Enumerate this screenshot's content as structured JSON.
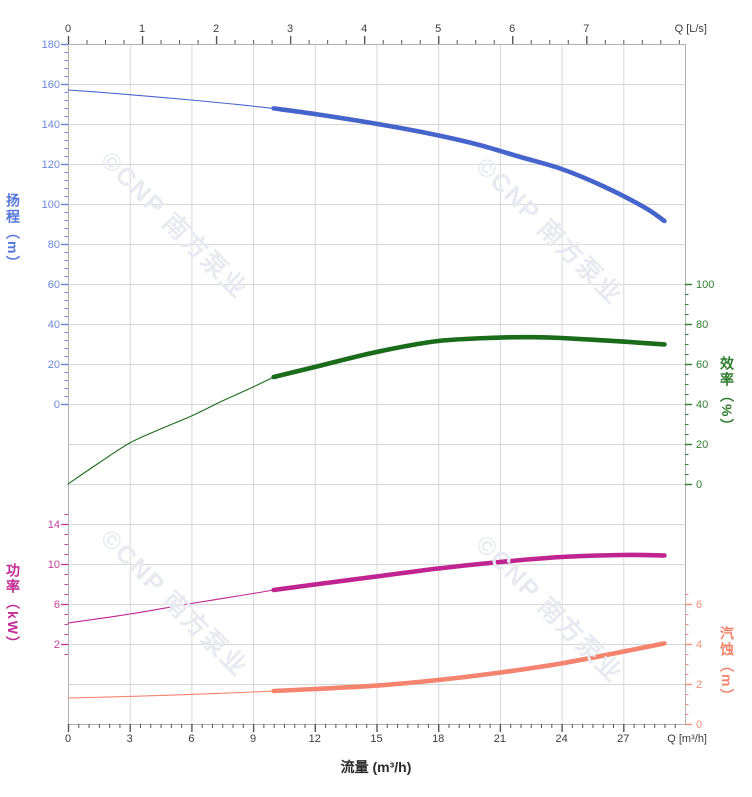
{
  "watermark": {
    "text": "©CNP 南方泵业"
  },
  "chart_data": {
    "type": "line",
    "grid": "on",
    "bottom_axis": {
      "title": "流量 (m³/h)",
      "unit_label": "Q [m³/h]",
      "min": 0,
      "max": 30,
      "major_ticks": [
        0,
        3,
        6,
        9,
        12,
        15,
        18,
        21,
        24,
        27
      ],
      "minor_step": 0.5,
      "tick_color": "#555555",
      "label_color": "#3c3c3c"
    },
    "top_axis": {
      "unit_label": "Q [L/s]",
      "min": 0,
      "max": 8.3333,
      "major_ticks": [
        0,
        1,
        2,
        3,
        4,
        5,
        6,
        7
      ],
      "minor_step": 0.25,
      "tick_color": "#555555",
      "label_color": "#3c3c3c"
    },
    "axes": {
      "head": {
        "title": "扬程（m）",
        "side": "left",
        "unit": "m",
        "major_ticks": [
          180,
          160,
          140,
          120,
          100,
          80,
          60,
          40,
          20,
          0
        ],
        "minor_step": 4,
        "curve_color": "#4565cc",
        "text_color": "#6b87dd"
      },
      "efficiency": {
        "title": "效率（%）",
        "side": "right",
        "unit": "%",
        "major_ticks": [
          100,
          80,
          60,
          40,
          20,
          0
        ],
        "minor_step": 5,
        "curve_color": "#1a6b1a",
        "text_color": "#2f7d2f"
      },
      "power": {
        "title": "功率（kW）",
        "side": "left",
        "unit": "kW",
        "major_ticks": [
          14,
          10,
          6,
          2
        ],
        "minor_step": 1,
        "curve_color": "#c02490",
        "text_color": "#c53f9b"
      },
      "npsh": {
        "title": "汽蚀（m）",
        "side": "right",
        "unit": "m",
        "major_ticks": [
          6,
          4,
          2,
          0
        ],
        "minor_step": 0.5,
        "curve_color": "#f5846f",
        "text_color": "#f58e7d"
      }
    },
    "series": [
      {
        "name": "head",
        "axis": "head",
        "rated_from_q": 10,
        "q": [
          0,
          2,
          4,
          6,
          8,
          10,
          12,
          14,
          16,
          18,
          20,
          22,
          24,
          26,
          28,
          29
        ],
        "v": [
          157,
          155.5,
          153.8,
          152,
          150,
          147.8,
          145,
          141.8,
          138.3,
          134.3,
          129.5,
          123.5,
          117.5,
          109,
          98.5,
          91.5
        ]
      },
      {
        "name": "efficiency",
        "axis": "efficiency",
        "rated_from_q": 10,
        "q": [
          0,
          1.5,
          3,
          4.5,
          6,
          7.5,
          9,
          10,
          12,
          15,
          18,
          21,
          22.5,
          24,
          27,
          29
        ],
        "v": [
          0,
          10.5,
          20.5,
          27.5,
          34,
          41.5,
          48.5,
          53.5,
          58.5,
          66,
          71.5,
          73.2,
          73.4,
          73,
          71.2,
          69.8
        ]
      },
      {
        "name": "power",
        "axis": "power",
        "rated_from_q": 10,
        "q": [
          0,
          3,
          6,
          9,
          10,
          12,
          15,
          18,
          21,
          24,
          27,
          29
        ],
        "v": [
          4.1,
          5.0,
          6.05,
          7.05,
          7.4,
          7.95,
          8.75,
          9.55,
          10.2,
          10.7,
          10.9,
          10.85
        ]
      },
      {
        "name": "npsh",
        "axis": "npsh",
        "rated_from_q": 10,
        "q": [
          0,
          3,
          6,
          9,
          10,
          12,
          15,
          18,
          21,
          24,
          27,
          29
        ],
        "v": [
          1.3,
          1.38,
          1.48,
          1.6,
          1.65,
          1.75,
          1.92,
          2.2,
          2.57,
          3.03,
          3.62,
          4.03
        ]
      }
    ]
  }
}
